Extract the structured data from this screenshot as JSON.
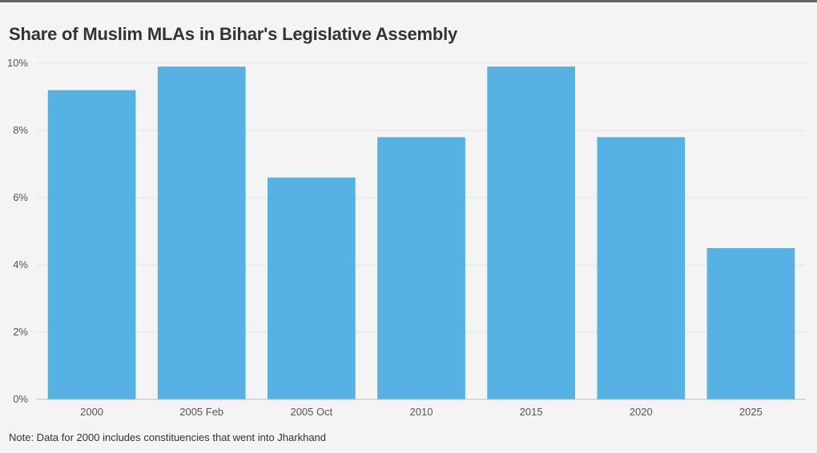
{
  "chart_data": {
    "type": "bar",
    "title": "Share of Muslim MLAs in Bihar's Legislative Assembly",
    "categories": [
      "2000",
      "2005 Feb",
      "2005 Oct",
      "2010",
      "2015",
      "2020",
      "2025"
    ],
    "values": [
      9.2,
      9.9,
      6.6,
      7.8,
      9.9,
      7.8,
      4.5
    ],
    "ylim": [
      0,
      10
    ],
    "yticks": [
      0,
      2,
      4,
      6,
      8,
      10
    ],
    "ytick_labels": [
      "0%",
      "2%",
      "4%",
      "6%",
      "8%",
      "10%"
    ],
    "xlabel": "",
    "ylabel": "",
    "grid": true,
    "bar_color": "#55b2e3",
    "note": "Note: Data for 2000 includes constituencies that went into Jharkhand"
  }
}
